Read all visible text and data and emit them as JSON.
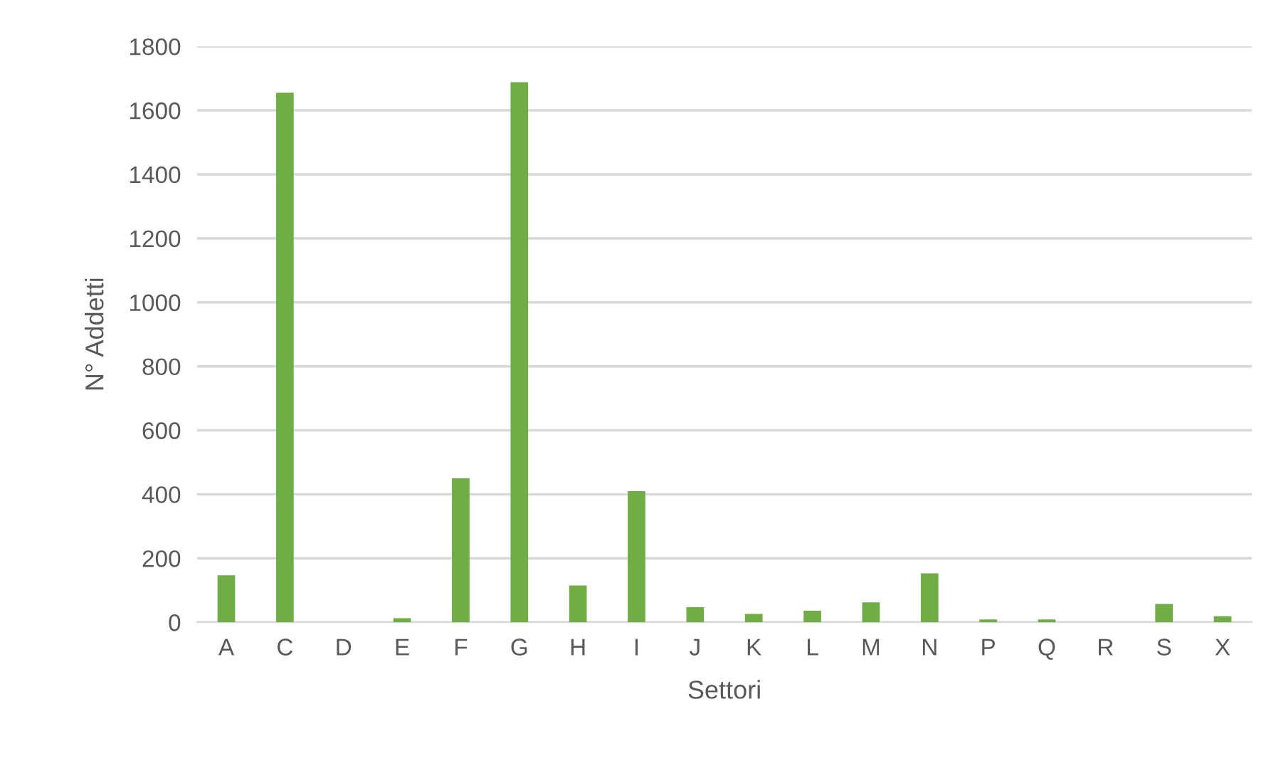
{
  "chart_data": {
    "type": "bar",
    "xlabel": "Settori",
    "ylabel": "N° Addetti",
    "categories": [
      "A",
      "C",
      "D",
      "E",
      "F",
      "G",
      "H",
      "I",
      "J",
      "K",
      "L",
      "M",
      "N",
      "P",
      "Q",
      "R",
      "S",
      "X"
    ],
    "values": [
      147,
      1655,
      0,
      13,
      450,
      1688,
      115,
      410,
      47,
      26,
      36,
      62,
      153,
      9,
      9,
      0,
      57,
      19
    ],
    "color": "#70ad47",
    "ylim": [
      0,
      1800
    ],
    "yticks": [
      0,
      200,
      400,
      600,
      800,
      1000,
      1200,
      1400,
      1600,
      1800
    ],
    "grid": "y"
  }
}
